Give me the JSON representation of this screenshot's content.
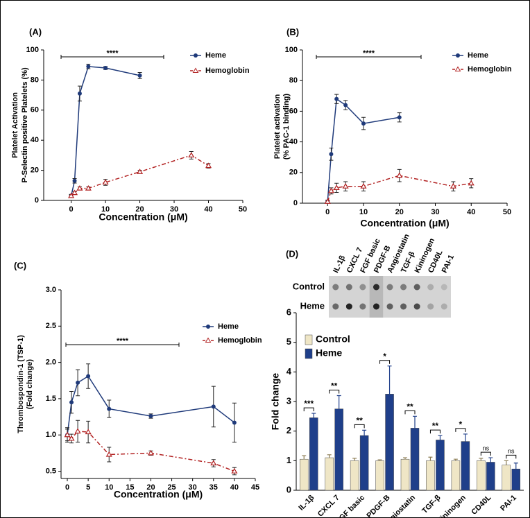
{
  "chart_data": [
    {
      "type": "line",
      "title": "(A)",
      "ylabel": [
        "Platelet Activation",
        "P-Selectin positive Platelets (%)"
      ],
      "xlabel": "Concentration (μM)",
      "annotation": "****",
      "xlim": [
        -8,
        50
      ],
      "xticks": [
        0,
        10,
        20,
        30,
        40,
        50
      ],
      "ylim": [
        0,
        100
      ],
      "yticks": [
        0,
        20,
        40,
        60,
        80,
        100
      ],
      "series": [
        {
          "name": "Heme",
          "color": "#1f3a7a",
          "x": [
            0,
            1,
            2.5,
            5,
            10,
            20
          ],
          "values": [
            3,
            13,
            71,
            89,
            88,
            83
          ],
          "errors": [
            1,
            1.5,
            5,
            1.5,
            1,
            2
          ]
        },
        {
          "name": "Hemoglobin",
          "color": "#b22222",
          "x": [
            0,
            1,
            2.5,
            5,
            10,
            20,
            35,
            40
          ],
          "values": [
            3,
            5,
            8,
            8,
            12,
            19,
            30,
            23
          ],
          "errors": [
            1,
            1,
            1,
            1,
            2,
            1,
            2.5,
            1.5
          ]
        }
      ]
    },
    {
      "type": "line",
      "title": "(B)",
      "ylabel": [
        "Platelet activation",
        "(% PAC-1 binding)"
      ],
      "xlabel": "Concentration (μM)",
      "annotation": "****",
      "xlim": [
        -7,
        50
      ],
      "xticks": [
        0,
        10,
        20,
        30,
        40,
        50
      ],
      "ylim": [
        0,
        100
      ],
      "yticks": [
        0,
        20,
        40,
        60,
        80,
        100
      ],
      "series": [
        {
          "name": "Heme",
          "color": "#1f3a7a",
          "x": [
            0,
            1,
            2.5,
            5,
            10,
            20
          ],
          "values": [
            1,
            32,
            68,
            64,
            52,
            56
          ],
          "errors": [
            1,
            4,
            3,
            3,
            4,
            3
          ]
        },
        {
          "name": "Hemoglobin",
          "color": "#b22222",
          "x": [
            0,
            1,
            2.5,
            5,
            10,
            20,
            35,
            40
          ],
          "values": [
            1,
            8,
            10,
            11,
            11,
            18,
            11,
            13
          ],
          "errors": [
            1,
            2,
            3,
            3,
            3,
            4,
            3,
            3
          ]
        }
      ]
    },
    {
      "type": "line",
      "title": "(C)",
      "ylabel": [
        "Thrombospondin-1 (TSP-1)",
        "(Fold change)"
      ],
      "xlabel": "Concentration (μM)",
      "annotation": "****",
      "xlim": [
        -1.5,
        45
      ],
      "xticks": [
        0,
        5,
        10,
        15,
        20,
        25,
        30,
        35,
        40,
        45
      ],
      "ylim": [
        0.4,
        3.0
      ],
      "yticks": [
        0.5,
        {
          "value": 1,
          "label": "1.0"
        },
        1.5,
        {
          "value": 2,
          "label": "2.0"
        },
        2.5,
        {
          "value": 3,
          "label": "3.0"
        }
      ],
      "series": [
        {
          "name": "Heme",
          "color": "#1f3a7a",
          "x": [
            0,
            1,
            2.5,
            5,
            10,
            20,
            35,
            40
          ],
          "values": [
            1.0,
            1.45,
            1.72,
            1.81,
            1.36,
            1.26,
            1.39,
            1.17
          ],
          "errors": [
            0.1,
            0.15,
            0.18,
            0.17,
            0.12,
            0.03,
            0.28,
            0.27
          ]
        },
        {
          "name": "Hemoglobin",
          "color": "#b22222",
          "x": [
            0,
            1,
            2.5,
            5,
            10,
            20,
            35,
            40
          ],
          "values": [
            1.0,
            0.95,
            1.05,
            1.04,
            0.73,
            0.75,
            0.61,
            0.5
          ],
          "errors": [
            0.08,
            0.06,
            0.15,
            0.15,
            0.1,
            0.03,
            0.05,
            0.05
          ]
        }
      ]
    },
    {
      "type": "bar",
      "title": "(D)",
      "ylabel": "Fold change",
      "blot_rows": [
        "Control",
        "Heme"
      ],
      "categories": [
        "IL-1β",
        "CXCL 7",
        "FGF basic",
        "PDGF-B",
        "Angiostatin",
        "TGF-β",
        "Kininogen",
        "CD40L",
        "PAI-1"
      ],
      "ylim": [
        0,
        6
      ],
      "yticks": [
        0,
        1,
        2,
        3,
        4,
        5,
        6
      ],
      "significance": [
        "***",
        "**",
        "**",
        "*",
        "**",
        "**",
        "*",
        "ns",
        "ns"
      ],
      "series": [
        {
          "name": "Control",
          "color": "#efe6c6",
          "values": [
            1.05,
            1.1,
            1.0,
            1.0,
            1.05,
            1.0,
            1.0,
            1.0,
            0.85
          ],
          "errors": [
            0.12,
            0.1,
            0.08,
            0.03,
            0.05,
            0.12,
            0.05,
            0.08,
            0.15
          ]
        },
        {
          "name": "Heme",
          "color": "#1f3f8a",
          "values": [
            2.45,
            2.75,
            1.85,
            3.25,
            2.1,
            1.7,
            1.65,
            0.95,
            0.72
          ],
          "errors": [
            0.15,
            0.45,
            0.18,
            0.95,
            0.4,
            0.15,
            0.25,
            0.15,
            0.2
          ]
        }
      ]
    }
  ]
}
